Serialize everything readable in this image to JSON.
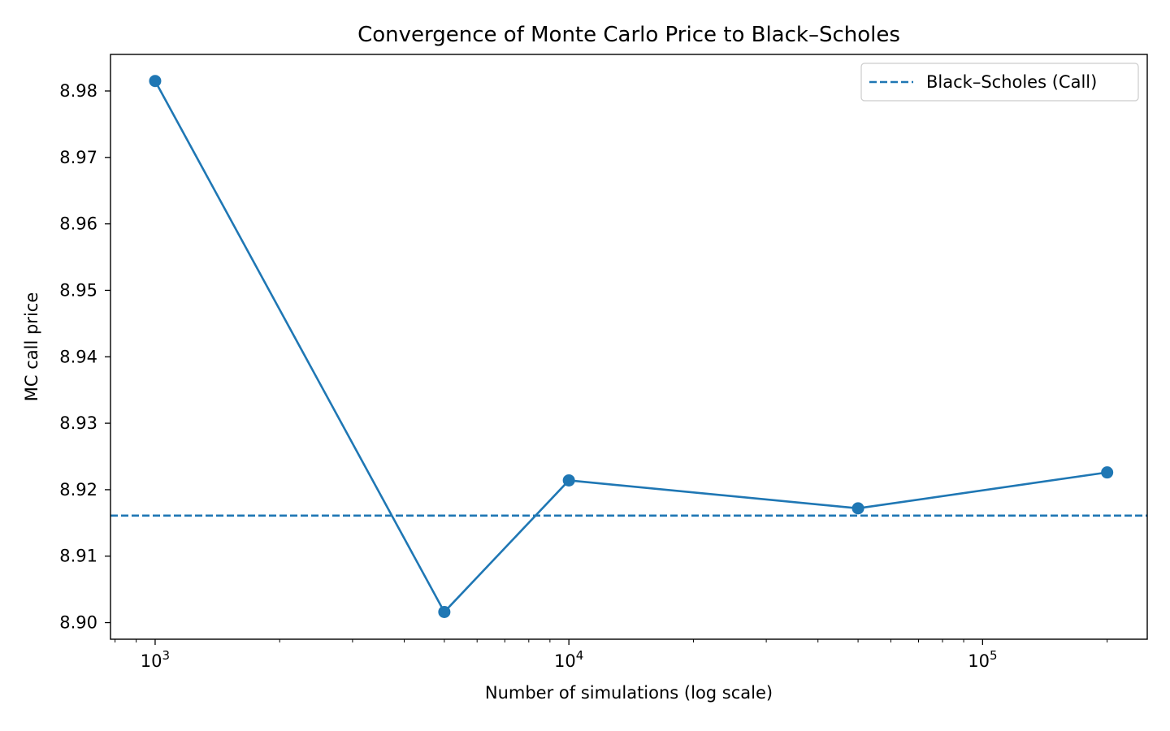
{
  "chart_data": {
    "type": "line",
    "title": "Convergence of Monte Carlo Price to Black–Scholes",
    "xlabel": "Number of simulations (log scale)",
    "ylabel": "MC call price",
    "xscale": "log",
    "xlim": [
      780,
      250000
    ],
    "ylim": [
      8.8975,
      8.9855
    ],
    "x_major_ticks": [
      {
        "value": 1000,
        "base": "10",
        "exp": "3"
      },
      {
        "value": 10000,
        "base": "10",
        "exp": "4"
      },
      {
        "value": 100000,
        "base": "10",
        "exp": "5"
      }
    ],
    "y_ticks": [
      "8.90",
      "8.91",
      "8.92",
      "8.93",
      "8.94",
      "8.95",
      "8.96",
      "8.97",
      "8.98"
    ],
    "series": [
      {
        "x": [
          1000,
          5000,
          10000,
          50000,
          200000
        ],
        "y": [
          8.9815,
          8.9016,
          8.9214,
          8.9172,
          8.9226
        ],
        "color": "#1f77b4",
        "marker": "circle"
      }
    ],
    "reference_line": {
      "name": "Black–Scholes (Call)",
      "y": 8.9161,
      "style": "dashed",
      "color": "#1f77b4"
    },
    "legend_position": "top-right",
    "grid": false
  }
}
